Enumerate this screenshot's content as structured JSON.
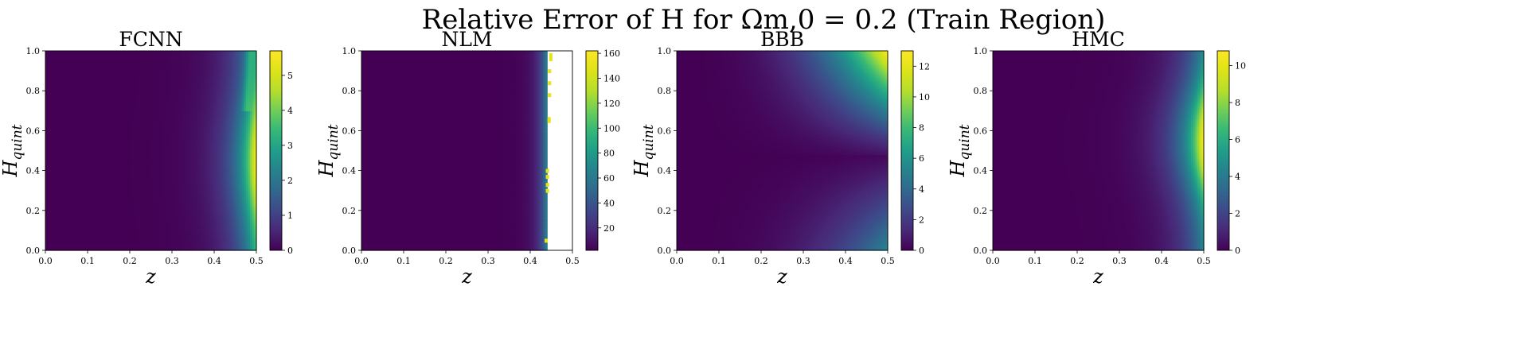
{
  "suptitle": "Relative Error of H for Ωm,0 = 0.2 (Train Region)",
  "colormap": "viridis",
  "chart_data": [
    {
      "type": "heatmap",
      "title": "FCNN",
      "xlabel": "z",
      "ylabel": "Hquint",
      "xlim": [
        0,
        0.5
      ],
      "ylim": [
        0,
        1
      ],
      "xticks": [
        "0.0",
        "0.1",
        "0.2",
        "0.3",
        "0.4",
        "0.5"
      ],
      "yticks": [
        "0.0",
        "0.2",
        "0.4",
        "0.6",
        "0.8",
        "1.0"
      ],
      "colorbar": {
        "min": 0,
        "max": 5.7,
        "ticks": [
          "0",
          "1",
          "2",
          "3",
          "4",
          "5"
        ]
      },
      "pattern": "error low across the domain, rising sharply near z=0.5, peak ~5.7 around Hquint 0.3-0.6"
    },
    {
      "type": "heatmap",
      "title": "NLM",
      "xlabel": "z",
      "ylabel": "Hquint",
      "xlim": [
        0,
        0.5
      ],
      "ylim": [
        0,
        1
      ],
      "xticks": [
        "0.0",
        "0.1",
        "0.2",
        "0.3",
        "0.4",
        "0.5"
      ],
      "yticks": [
        "0.0",
        "0.2",
        "0.4",
        "0.6",
        "0.8",
        "1.0"
      ],
      "colorbar": {
        "min": 2,
        "max": 162,
        "ticks": [
          "20",
          "40",
          "60",
          "80",
          "100",
          "120",
          "140",
          "160"
        ]
      },
      "pattern": "near zero until z~0.43, thin band of very large values, undefined (white) for z>0.44"
    },
    {
      "type": "heatmap",
      "title": "BBB",
      "xlabel": "z",
      "ylabel": "Hquint",
      "xlim": [
        0,
        0.5
      ],
      "ylim": [
        0,
        1
      ],
      "xticks": [
        "0.0",
        "0.1",
        "0.2",
        "0.3",
        "0.4",
        "0.5"
      ],
      "yticks": [
        "0.0",
        "0.2",
        "0.4",
        "0.6",
        "0.8",
        "1.0"
      ],
      "colorbar": {
        "min": 0,
        "max": 13,
        "ticks": [
          "0",
          "2",
          "4",
          "6",
          "8",
          "10",
          "12"
        ]
      },
      "pattern": "error grows toward z=0.5 and Hquint=1, peak ~13 at top-right corner, minimum near Hquint~0.5"
    },
    {
      "type": "heatmap",
      "title": "HMC",
      "xlabel": "z",
      "ylabel": "Hquint",
      "xlim": [
        0,
        0.5
      ],
      "ylim": [
        0,
        1
      ],
      "xticks": [
        "0.0",
        "0.1",
        "0.2",
        "0.3",
        "0.4",
        "0.5"
      ],
      "yticks": [
        "0.0",
        "0.2",
        "0.4",
        "0.6",
        "0.8",
        "1.0"
      ],
      "colorbar": {
        "min": 0,
        "max": 10.8,
        "ticks": [
          "0",
          "2",
          "4",
          "6",
          "8",
          "10"
        ]
      },
      "pattern": "error grows toward z=0.5, peak ~10.8 around Hquint 0.4-0.7"
    }
  ]
}
